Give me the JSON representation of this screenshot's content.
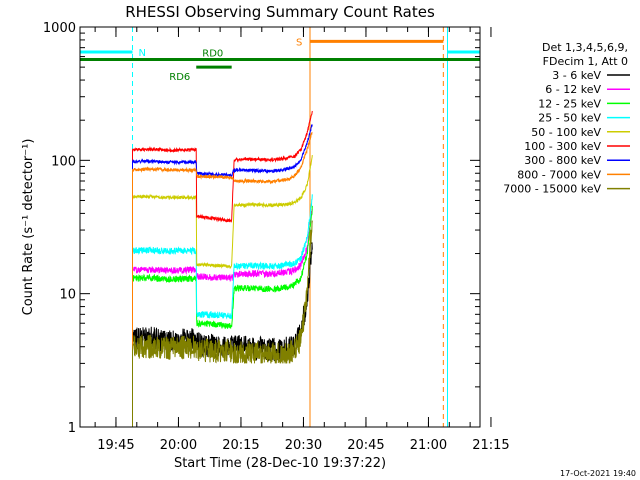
{
  "chart_data": {
    "type": "line",
    "title": "RHESSI Observing Summary Count Rates",
    "xlabel": "Start Time (28-Dec-10 19:37:22)",
    "ylabel": "Count Rate (s⁻¹ detector⁻¹)",
    "yscale": "log",
    "ylim": [
      1,
      1000
    ],
    "xlim_minutes": [
      -1,
      95
    ],
    "x_tick_labels": [
      "19:45",
      "20:00",
      "20:15",
      "20:30",
      "20:45",
      "21:00",
      "21:15"
    ],
    "x_tick_minutes": [
      7.63,
      22.63,
      37.63,
      52.63,
      67.63,
      82.63,
      97.63
    ],
    "y_tick_labels": [
      "1",
      "10",
      "100",
      "1000"
    ],
    "legend_header": [
      "Det 1,3,4,5,6,9,",
      "FDecim 1, Att 0"
    ],
    "legend_position": "right",
    "grid": false,
    "series": [
      {
        "name": "3 - 6 keV",
        "color": "#000000",
        "x": [
          11.6,
          16,
          20,
          26.9,
          27,
          33,
          35.4,
          36,
          40,
          45,
          49,
          50.5,
          52,
          53.5,
          54.8
        ],
        "y": [
          4.5,
          4.6,
          4.4,
          4.5,
          4.2,
          4.0,
          4.0,
          4.0,
          3.9,
          3.8,
          3.9,
          4.2,
          5.3,
          9.0,
          25.0
        ]
      },
      {
        "name": "6 - 12 keV",
        "color": "#ff00ff",
        "x": [
          11.6,
          16,
          20,
          26.9,
          27,
          33,
          35.4,
          36,
          40,
          45,
          49,
          50.5,
          52,
          53.5,
          54.8
        ],
        "y": [
          15.0,
          15.2,
          14.9,
          15.1,
          13.5,
          13.2,
          13.0,
          14.0,
          14.2,
          14.1,
          14.6,
          15.0,
          16.5,
          22.0,
          45.0
        ]
      },
      {
        "name": "12 - 25 keV",
        "color": "#00ff00",
        "x": [
          11.6,
          16,
          20,
          26.9,
          27,
          33,
          35.4,
          36,
          40,
          45,
          49,
          50.5,
          52,
          53.5,
          54.8
        ],
        "y": [
          13.0,
          13.1,
          12.8,
          13.0,
          6.0,
          5.8,
          5.7,
          11.0,
          11.0,
          10.8,
          11.2,
          11.8,
          13.0,
          20.0,
          45.0
        ]
      },
      {
        "name": "25 - 50 keV",
        "color": "#00ffff",
        "x": [
          11.6,
          16,
          20,
          26.9,
          27,
          33,
          35.4,
          36,
          40,
          45,
          49,
          50.5,
          52,
          53.5,
          54.8
        ],
        "y": [
          21.0,
          21.2,
          20.8,
          21.0,
          7.0,
          6.9,
          6.8,
          16.0,
          16.2,
          16.0,
          16.4,
          17.0,
          18.5,
          26.0,
          55.0
        ]
      },
      {
        "name": "50 - 100 keV",
        "color": "#cccc00",
        "x": [
          11.6,
          16,
          20,
          26.9,
          27,
          33,
          35.4,
          36,
          40,
          45,
          49,
          50.5,
          52,
          53.5,
          54.8
        ],
        "y": [
          53.0,
          53.5,
          52.5,
          53.0,
          16.5,
          16.2,
          16.0,
          46.0,
          46.5,
          46.0,
          47.0,
          48.5,
          52.0,
          65.0,
          110.0
        ]
      },
      {
        "name": "100 - 300 keV",
        "color": "#ff0000",
        "x": [
          11.6,
          16,
          20,
          26.9,
          27,
          33,
          35.4,
          36,
          40,
          45,
          49,
          50.5,
          52,
          53.5,
          54.8
        ],
        "y": [
          120.0,
          121.0,
          119.0,
          120.0,
          38.0,
          36.0,
          35.0,
          101.0,
          102.0,
          101.0,
          104.0,
          108.0,
          120.0,
          160.0,
          240.0
        ]
      },
      {
        "name": "300 - 800 keV",
        "color": "#0000ff",
        "x": [
          11.6,
          16,
          20,
          26.9,
          27,
          33,
          35.4,
          36,
          40,
          45,
          49,
          50.5,
          52,
          53.5,
          54.8
        ],
        "y": [
          98.0,
          99.0,
          97.0,
          97.0,
          80.0,
          78.0,
          77.0,
          85.0,
          84.0,
          83.0,
          86.0,
          90.0,
          100.0,
          135.0,
          190.0
        ]
      },
      {
        "name": "800 - 7000 keV",
        "color": "#ff8000",
        "x": [
          11.6,
          16,
          20,
          26.9,
          27,
          33,
          35.4,
          36,
          40,
          45,
          49,
          50.5,
          52,
          53.5,
          54.8
        ],
        "y": [
          85.0,
          86.0,
          85.0,
          84.0,
          76.0,
          75.0,
          74.0,
          70.0,
          70.0,
          69.0,
          72.0,
          76.0,
          88.0,
          120.0,
          170.0
        ]
      },
      {
        "name": "7000 - 15000 keV",
        "color": "#808000",
        "x": [
          11.6,
          16,
          20,
          26.9,
          27,
          33,
          35.4,
          36,
          40,
          45,
          49,
          50.5,
          52,
          53.5,
          54.8
        ],
        "y": [
          4.0,
          4.0,
          3.9,
          4.0,
          3.8,
          3.7,
          3.7,
          3.6,
          3.6,
          3.5,
          3.6,
          3.8,
          4.5,
          10.0,
          40.0
        ]
      }
    ],
    "state_bars": [
      {
        "label": "N",
        "color": "#00ffff",
        "segments": [
          [
            -1,
            11.6
          ],
          [
            87.2,
            95
          ]
        ],
        "y": 650
      },
      {
        "label": "S",
        "color": "#ff8000",
        "segments": [
          [
            54.2,
            86.2
          ]
        ],
        "y": 780
      },
      {
        "label": "RD0",
        "color": "#008000",
        "segments": [
          [
            -1,
            95
          ]
        ],
        "y": 570
      },
      {
        "label": "RD6",
        "color": "#008000",
        "segments": [
          [
            26.9,
            35.4
          ]
        ],
        "y": 500
      }
    ],
    "vlines": [
      {
        "x": -1,
        "color": "#00ffff",
        "style": "solid"
      },
      {
        "x": 11.6,
        "color": "#00ffff",
        "style": "dashed"
      },
      {
        "x": 54.2,
        "color": "#ff8000",
        "style": "solid"
      },
      {
        "x": 86.2,
        "color": "#ff8000",
        "style": "dashed"
      },
      {
        "x": 87.2,
        "color": "#00ffff",
        "style": "solid"
      },
      {
        "x": 95,
        "color": "#00ffff",
        "style": "dashed"
      }
    ],
    "colors": {
      "background": "#ffffff",
      "frame": "#000000"
    }
  },
  "footer": "17-Oct-2021 19:40"
}
